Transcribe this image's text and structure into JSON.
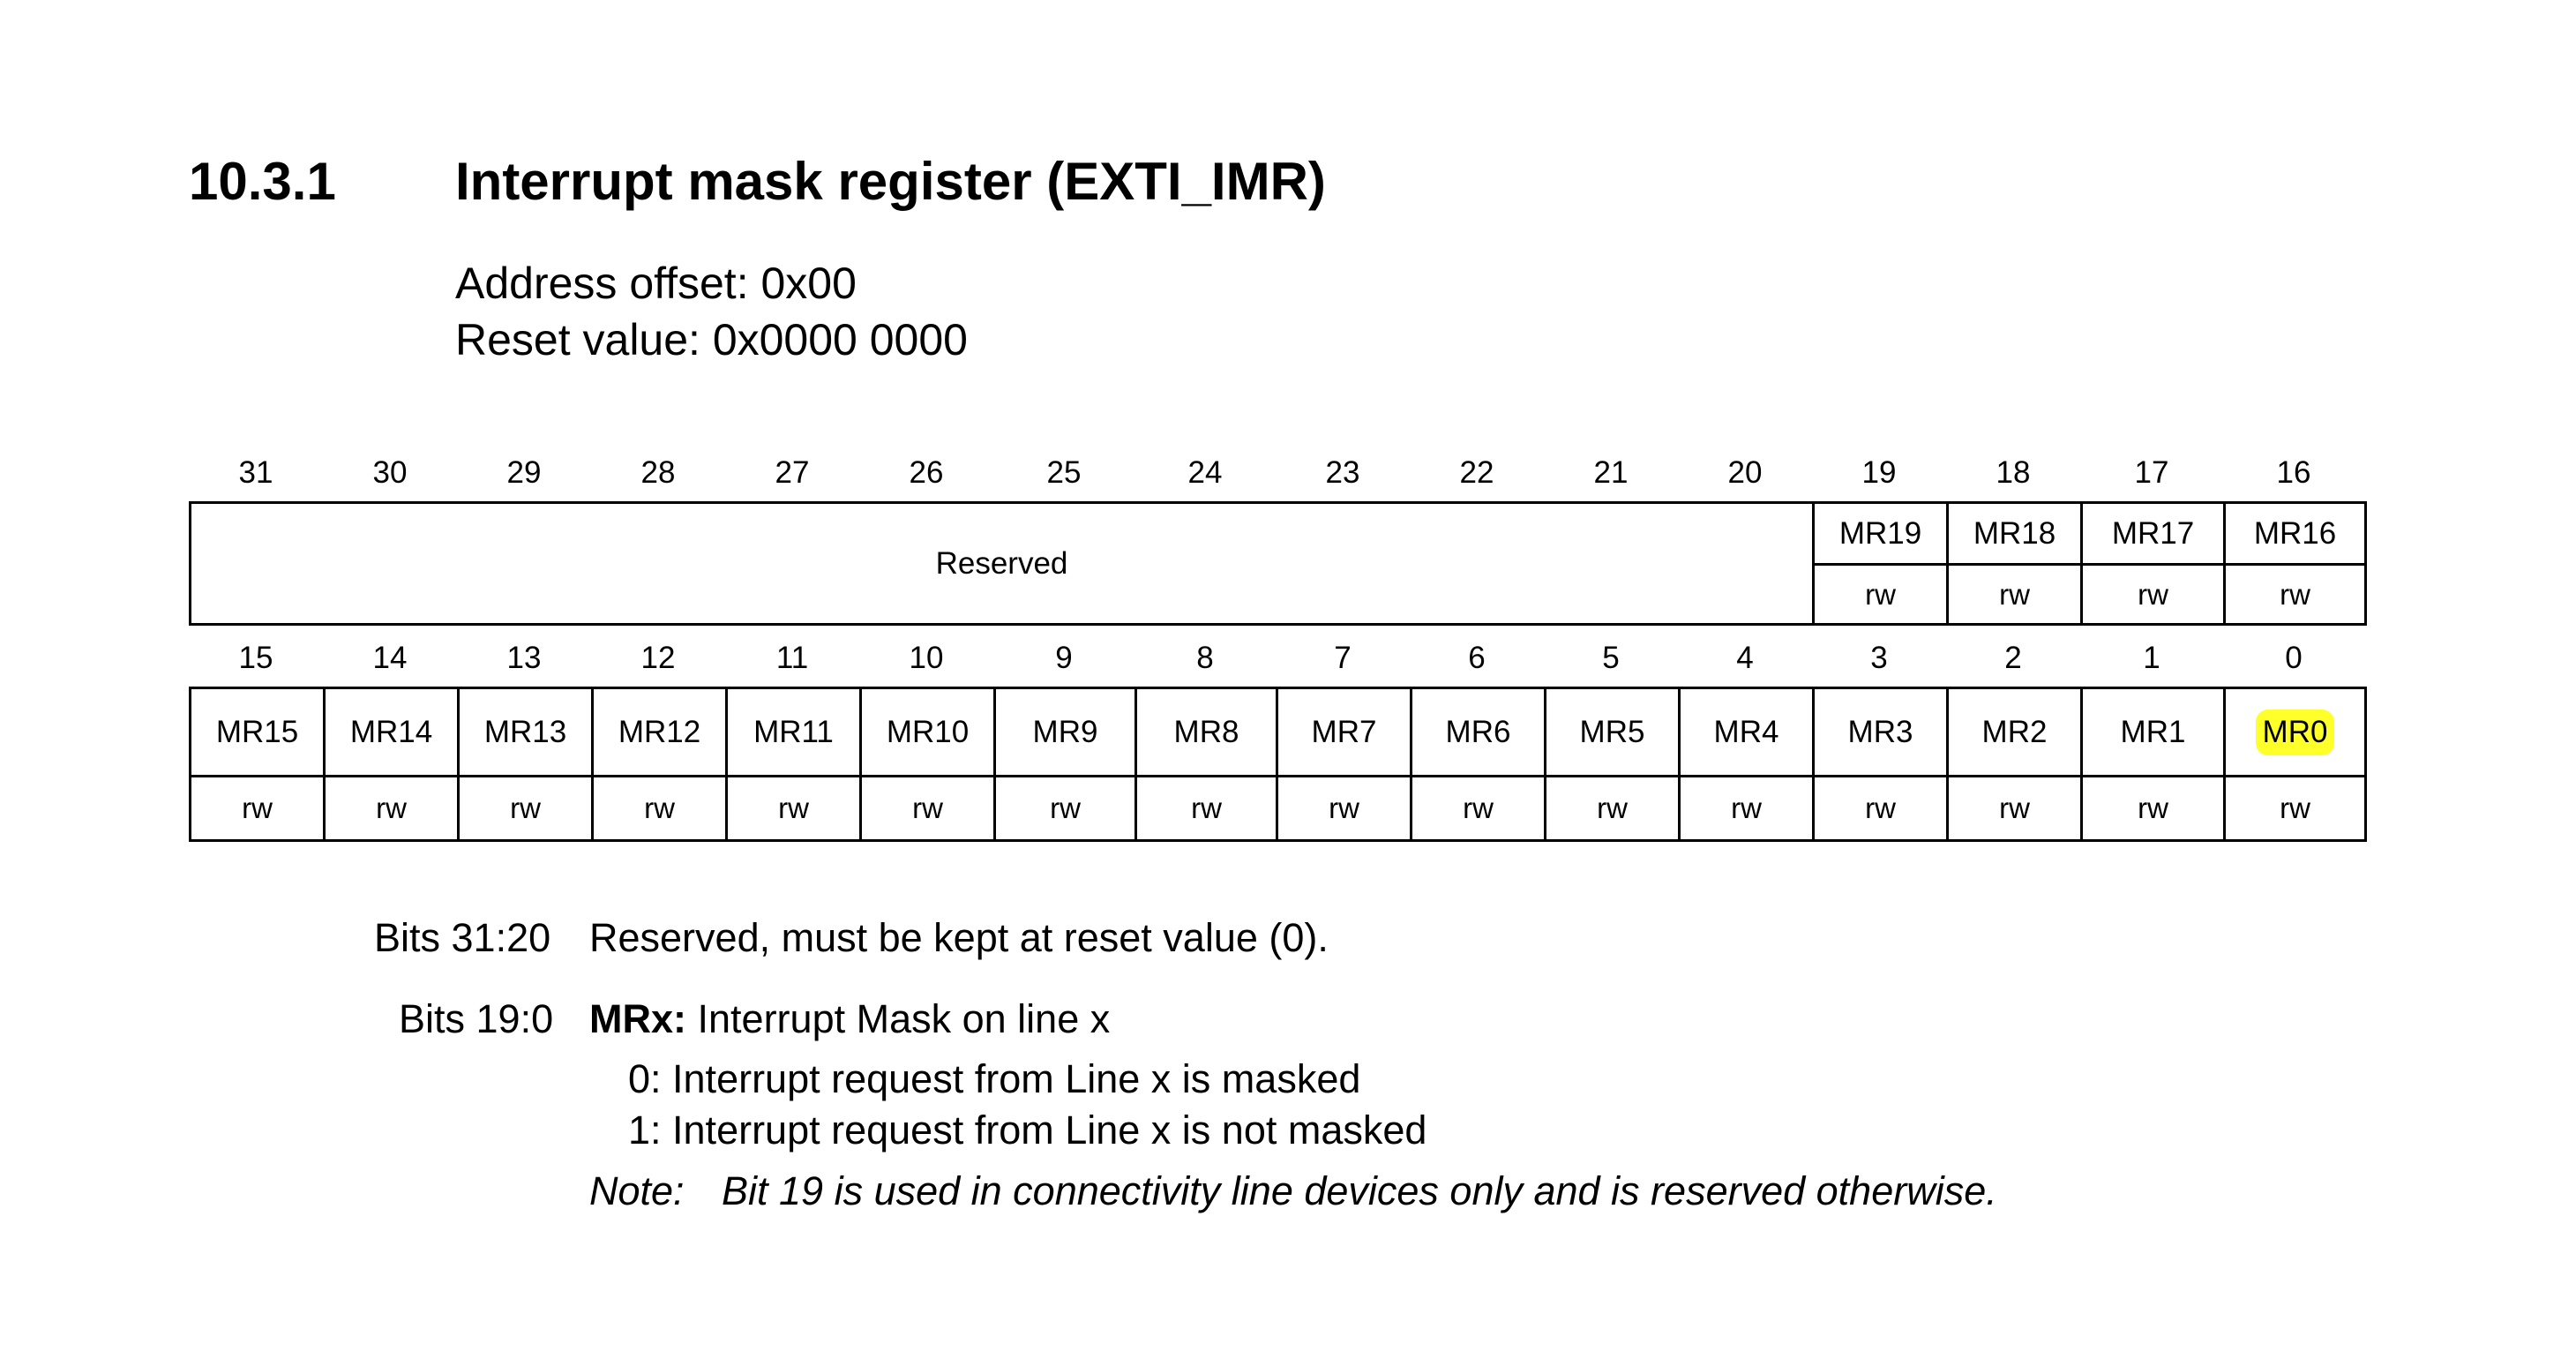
{
  "section": {
    "number": "10.3.1",
    "title": "Interrupt mask register (EXTI_IMR)"
  },
  "address_offset": "Address offset: 0x00",
  "reset_value": "Reset value: 0x0000 0000",
  "register": {
    "upper": {
      "bit_numbers": [
        "31",
        "30",
        "29",
        "28",
        "27",
        "26",
        "25",
        "24",
        "23",
        "22",
        "21",
        "20",
        "19",
        "18",
        "17",
        "16"
      ],
      "reserved_label": "Reserved",
      "fields": [
        "MR19",
        "MR18",
        "MR17",
        "MR16"
      ],
      "access": [
        "rw",
        "rw",
        "rw",
        "rw"
      ]
    },
    "lower": {
      "bit_numbers": [
        "15",
        "14",
        "13",
        "12",
        "11",
        "10",
        "9",
        "8",
        "7",
        "6",
        "5",
        "4",
        "3",
        "2",
        "1",
        "0"
      ],
      "fields": [
        "MR15",
        "MR14",
        "MR13",
        "MR12",
        "MR11",
        "MR10",
        "MR9",
        "MR8",
        "MR7",
        "MR6",
        "MR5",
        "MR4",
        "MR3",
        "MR2",
        "MR1",
        "MR0"
      ],
      "access": [
        "rw",
        "rw",
        "rw",
        "rw",
        "rw",
        "rw",
        "rw",
        "rw",
        "rw",
        "rw",
        "rw",
        "rw",
        "rw",
        "rw",
        "rw",
        "rw"
      ]
    },
    "highlighted_field": "MR0",
    "highlight_color": "#ffff2a"
  },
  "description": {
    "bits_31_20_label": "Bits 31:20",
    "bits_31_20_text": "Reserved, must be kept at reset value (0).",
    "bits_19_0_label": "Bits 19:0",
    "bits_19_0_name": "MRx:",
    "bits_19_0_text": "Interrupt Mask on line x",
    "value_0": "0: Interrupt request from Line x is masked",
    "value_1": "1: Interrupt request from Line x is not masked",
    "note_label": "Note:",
    "note_text": "Bit 19 is used in connectivity line devices only and is reserved otherwise."
  }
}
